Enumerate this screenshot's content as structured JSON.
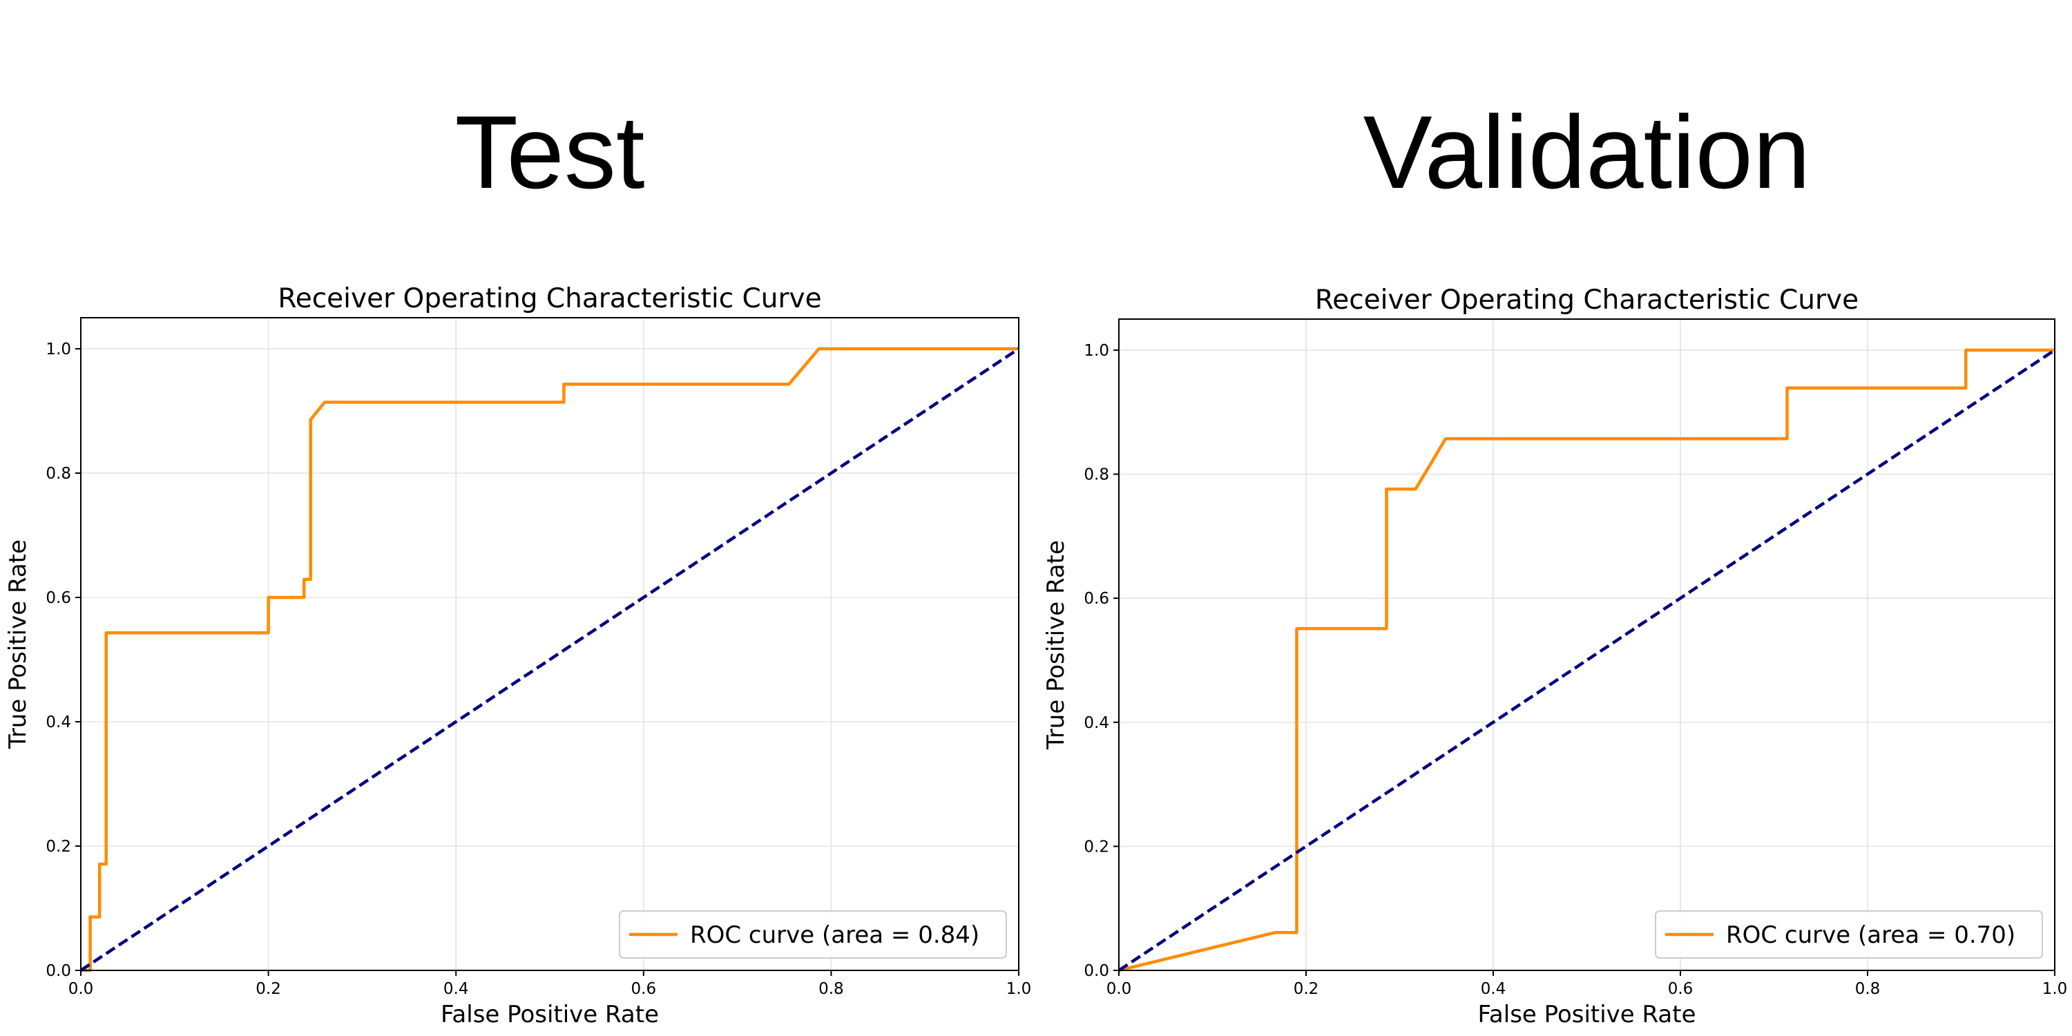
{
  "panels": [
    {
      "heading": "Test",
      "chart_data": {
        "type": "line",
        "title": "Receiver Operating Characteristic Curve",
        "xlabel": "False Positive Rate",
        "ylabel": "True Positive Rate",
        "xlim": [
          0.0,
          1.0
        ],
        "ylim": [
          0.0,
          1.05
        ],
        "xticks": [
          "0.0",
          "0.2",
          "0.4",
          "0.6",
          "0.8",
          "1.0"
        ],
        "yticks": [
          "0.0",
          "0.2",
          "0.4",
          "0.6",
          "0.8",
          "1.0"
        ],
        "grid": true,
        "legend_position": "lower-right",
        "series": [
          {
            "name": "ROC curve (area = 0.84)",
            "color": "#ff8c00",
            "style": "solid",
            "x": [
              0.0,
              0.01,
              0.01,
              0.02,
              0.02,
              0.027,
              0.027,
              0.2,
              0.2,
              0.238,
              0.238,
              0.245,
              0.245,
              0.26,
              0.515,
              0.515,
              0.755,
              0.787,
              1.0
            ],
            "y": [
              0.0,
              0.0,
              0.086,
              0.086,
              0.171,
              0.171,
              0.543,
              0.543,
              0.6,
              0.6,
              0.629,
              0.629,
              0.886,
              0.914,
              0.914,
              0.943,
              0.943,
              1.0,
              1.0
            ]
          },
          {
            "name": "",
            "color": "#000080",
            "style": "dashed",
            "x": [
              0.0,
              1.0
            ],
            "y": [
              0.0,
              1.0
            ]
          }
        ]
      }
    },
    {
      "heading": "Validation",
      "chart_data": {
        "type": "line",
        "title": "Receiver Operating Characteristic Curve",
        "xlabel": "False Positive Rate",
        "ylabel": "True Positive Rate",
        "xlim": [
          0.0,
          1.0
        ],
        "ylim": [
          0.0,
          1.05
        ],
        "xticks": [
          "0.0",
          "0.2",
          "0.4",
          "0.6",
          "0.8",
          "1.0"
        ],
        "yticks": [
          "0.0",
          "0.2",
          "0.4",
          "0.6",
          "0.8",
          "1.0"
        ],
        "grid": true,
        "legend_position": "lower-right",
        "series": [
          {
            "name": "ROC curve (area = 0.70)",
            "color": "#ff8c00",
            "style": "solid",
            "x": [
              0.0,
              0.167,
              0.19,
              0.19,
              0.286,
              0.286,
              0.317,
              0.333,
              0.349,
              0.714,
              0.714,
              0.905,
              0.905,
              1.0
            ],
            "y": [
              0.0,
              0.061,
              0.061,
              0.551,
              0.551,
              0.776,
              0.776,
              0.816,
              0.857,
              0.857,
              0.939,
              0.939,
              1.0,
              1.0
            ]
          },
          {
            "name": "",
            "color": "#000080",
            "style": "dashed",
            "x": [
              0.0,
              1.0
            ],
            "y": [
              0.0,
              1.0
            ]
          }
        ]
      }
    }
  ]
}
